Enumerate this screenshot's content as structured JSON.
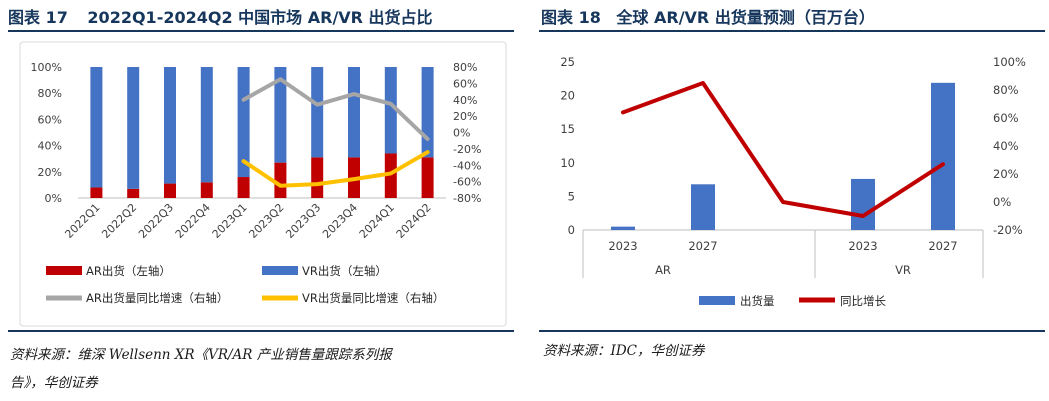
{
  "left": {
    "title_fig": "图表 17",
    "title_text": "2022Q1-2024Q2 中国市场 AR/VR 出货占比",
    "source": "资料来源：维深 Wellsenn XR《VR/AR 产业销售量跟踪系列报告》，华创证券",
    "source_line1": "资料来源：维深 Wellsenn XR《VR/AR 产业销售量跟踪系列报",
    "source_line2": "告》，华创证券"
  },
  "right": {
    "title_fig": "图表 18",
    "title_text": "全球 AR/VR 出货量预测（百万台）",
    "source": "资料来源：IDC，华创证券"
  },
  "chart_data": [
    {
      "type": "bar",
      "stacked": true,
      "combo_lines": true,
      "categories": [
        "2022Q1",
        "2022Q2",
        "2022Q3",
        "2022Q4",
        "2023Q1",
        "2023Q2",
        "2023Q3",
        "2023Q4",
        "2024Q1",
        "2024Q2"
      ],
      "y_left": {
        "ylim": [
          0,
          100
        ],
        "ticks": [
          "0%",
          "20%",
          "40%",
          "60%",
          "80%",
          "100%"
        ]
      },
      "y_right": {
        "ylim": [
          -80,
          80
        ],
        "ticks": [
          "-80%",
          "-60%",
          "-40%",
          "-20%",
          "0%",
          "20%",
          "40%",
          "60%",
          "80%"
        ]
      },
      "series": [
        {
          "name": "AR出货（左轴）",
          "axis": "left",
          "kind": "bar",
          "color": "#c00000",
          "values": [
            8,
            7,
            11,
            12,
            16,
            27,
            31,
            31,
            34,
            31
          ]
        },
        {
          "name": "VR出货（左轴）",
          "axis": "left",
          "kind": "bar",
          "color": "#4472c4",
          "values": [
            92,
            93,
            89,
            88,
            84,
            73,
            69,
            69,
            66,
            69
          ]
        },
        {
          "name": "AR出货量同比增速（右轴）",
          "axis": "right",
          "kind": "line",
          "color": "#a6a6a6",
          "values": [
            null,
            null,
            null,
            null,
            40,
            65,
            34,
            47,
            35,
            -8
          ]
        },
        {
          "name": "VR出货量同比增速（右轴）",
          "axis": "right",
          "kind": "line",
          "color": "#ffc000",
          "values": [
            null,
            null,
            null,
            null,
            -35,
            -65,
            -63,
            -57,
            -50,
            -24
          ]
        }
      ],
      "legend": "bottom",
      "grid": false
    },
    {
      "type": "bar",
      "combo_lines": true,
      "categories": [
        "2023",
        "2027",
        "",
        "2023",
        "2027"
      ],
      "groups": [
        {
          "label": "AR",
          "categories": [
            "2023",
            "2027"
          ]
        },
        {
          "label": "VR",
          "categories": [
            "2023",
            "2027"
          ]
        }
      ],
      "y_left": {
        "ylim": [
          0,
          25
        ],
        "ticks": [
          "0",
          "5",
          "10",
          "15",
          "20",
          "25"
        ]
      },
      "y_right": {
        "ylim": [
          -20,
          100
        ],
        "ticks": [
          "-20%",
          "0%",
          "20%",
          "40%",
          "60%",
          "80%",
          "100%"
        ]
      },
      "series": [
        {
          "name": "出货量",
          "axis": "left",
          "kind": "bar",
          "color": "#4472c4",
          "values": [
            0.5,
            6.8,
            null,
            7.6,
            21.9
          ]
        },
        {
          "name": "同比增长",
          "axis": "right",
          "kind": "line",
          "color": "#c00000",
          "values": [
            64,
            85,
            0,
            -10,
            27
          ]
        }
      ],
      "legend": "bottom",
      "grid": false
    }
  ]
}
